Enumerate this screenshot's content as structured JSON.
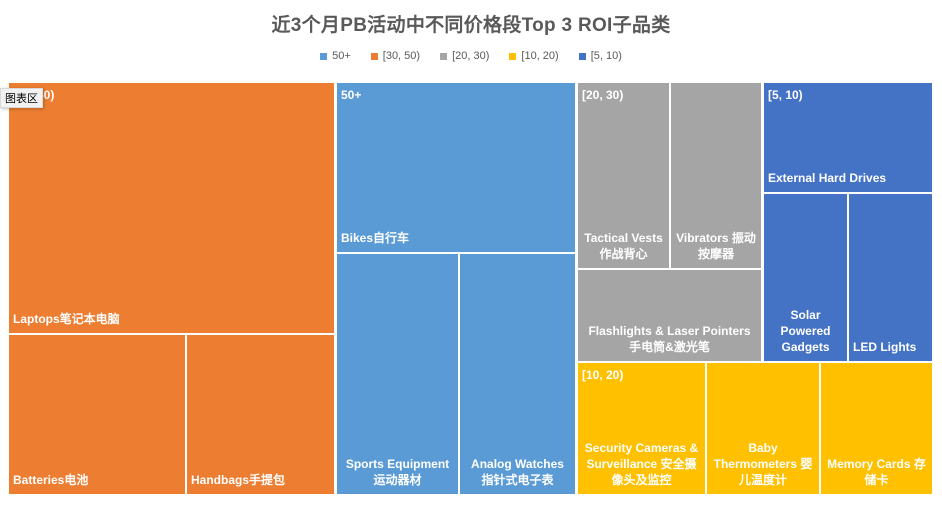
{
  "tooltip": {
    "text": "图表区"
  },
  "chart_data": {
    "type": "treemap",
    "title": "近3个月PB活动中不同价格段Top 3 ROI子品类",
    "legend_position": "top",
    "groups": [
      {
        "name": "[30, 50)",
        "color": "#ed7d31",
        "items": [
          {
            "name": "Laptops笔记本电脑"
          },
          {
            "name": "Batteries电池"
          },
          {
            "name": "Handbags手提包"
          }
        ]
      },
      {
        "name": "50+",
        "color": "#5b9bd5",
        "items": [
          {
            "name": "Bikes自行车"
          },
          {
            "name": "Sports Equipment 运动器材"
          },
          {
            "name": "Analog Watches 指针式电子表"
          }
        ]
      },
      {
        "name": "[20, 30)",
        "color": "#a5a5a5",
        "items": [
          {
            "name": "Tactical Vests 作战背心"
          },
          {
            "name": "Vibrators 振动按摩器"
          },
          {
            "name": "Flashlights & Laser Pointers 手电筒&激光笔"
          }
        ]
      },
      {
        "name": "[5, 10)",
        "color": "#4472c4",
        "items": [
          {
            "name": "External Hard Drives"
          },
          {
            "name": "Solar Powered Gadgets"
          },
          {
            "name": "LED Lights"
          }
        ]
      },
      {
        "name": "[10, 20)",
        "color": "#ffc000",
        "items": [
          {
            "name": "Security Cameras & Surveillance 安全摄像头及监控"
          },
          {
            "name": "Baby Thermometers 婴儿温度计"
          },
          {
            "name": "Memory Cards 存储卡"
          }
        ]
      }
    ],
    "legend_order": [
      "50+",
      "[30, 50)",
      "[20, 30)",
      "[10, 20)",
      "[5, 10)"
    ]
  }
}
